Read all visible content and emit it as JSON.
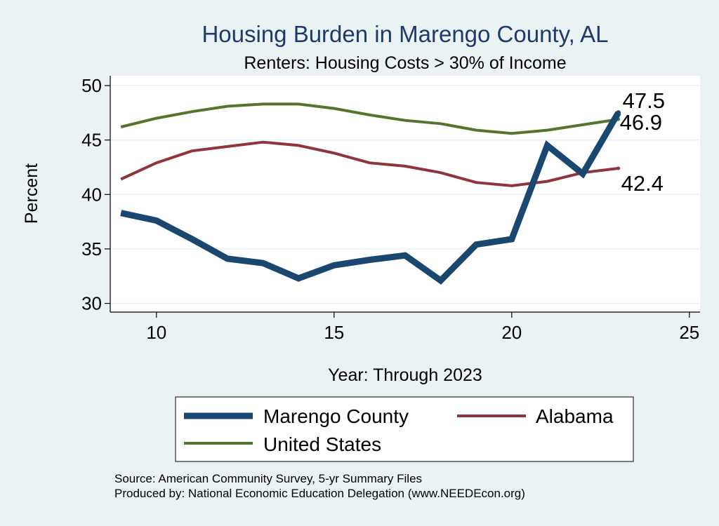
{
  "chart_data": {
    "type": "line",
    "title": "Housing Burden in Marengo County, AL",
    "subtitle": "Renters: Housing Costs > 30% of Income",
    "xlabel": "Year: Through 2023",
    "ylabel": "Percent",
    "xlim": [
      8.7,
      25.3
    ],
    "ylim": [
      29.2,
      50.9
    ],
    "xticks": [
      10,
      15,
      20,
      25
    ],
    "yticks": [
      30,
      35,
      40,
      45,
      50
    ],
    "grid": true,
    "legend_position": "bottom",
    "x": [
      9,
      10,
      11,
      12,
      13,
      14,
      15,
      16,
      17,
      18,
      19,
      20,
      21,
      22,
      23
    ],
    "series": [
      {
        "name": "Marengo County",
        "color": "#1a476f",
        "values": [
          38.3,
          37.6,
          35.9,
          34.1,
          33.7,
          32.3,
          33.5,
          34.0,
          34.4,
          32.1,
          35.4,
          35.9,
          44.5,
          41.9,
          47.5
        ],
        "end_label": "47.5"
      },
      {
        "name": "Alabama",
        "color": "#90353b",
        "values": [
          41.4,
          42.9,
          44.0,
          44.4,
          44.8,
          44.5,
          43.8,
          42.9,
          42.6,
          42.0,
          41.1,
          40.8,
          41.2,
          42.0,
          42.4
        ],
        "end_label": "42.4"
      },
      {
        "name": "United States",
        "color": "#55752f",
        "values": [
          46.2,
          47.0,
          47.6,
          48.1,
          48.3,
          48.3,
          47.9,
          47.3,
          46.8,
          46.5,
          45.9,
          45.6,
          45.9,
          46.4,
          46.9
        ],
        "end_label": "46.9"
      }
    ],
    "notes": [
      "Source: American Community Survey, 5-yr Summary Files",
      "Produced by: National Economic Education Delegation (www.NEEDEcon.org)"
    ]
  }
}
